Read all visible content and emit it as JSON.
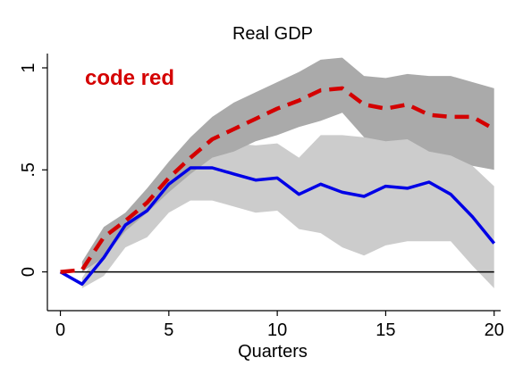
{
  "chart_data": {
    "type": "line",
    "title": "Real GDP",
    "xlabel": "Quarters",
    "ylabel": "",
    "xlim": [
      -0.6,
      20.3
    ],
    "ylim": [
      -0.19,
      1.07
    ],
    "x_ticks": [
      {
        "value": 0,
        "label": "0"
      },
      {
        "value": 5,
        "label": "5"
      },
      {
        "value": 10,
        "label": "10"
      },
      {
        "value": 15,
        "label": "15"
      },
      {
        "value": 20,
        "label": "20"
      }
    ],
    "y_ticks": [
      {
        "value": 0,
        "label": "0"
      },
      {
        "value": 0.5,
        "label": ".5"
      },
      {
        "value": 1,
        "label": "1"
      }
    ],
    "x": [
      0,
      1,
      2,
      3,
      4,
      5,
      6,
      7,
      8,
      9,
      10,
      11,
      12,
      13,
      14,
      15,
      16,
      17,
      18,
      19,
      20
    ],
    "series": [
      {
        "name": "code red",
        "color": "#d40000",
        "style": "dashed",
        "values": [
          0,
          0.01,
          0.17,
          0.25,
          0.34,
          0.46,
          0.56,
          0.65,
          0.7,
          0.75,
          0.8,
          0.84,
          0.89,
          0.9,
          0.82,
          0.8,
          0.82,
          0.77,
          0.76,
          0.76,
          0.7
        ],
        "band_lower": [
          null,
          0,
          0.07,
          0.2,
          0.29,
          0.39,
          0.48,
          0.56,
          0.59,
          0.64,
          0.67,
          0.71,
          0.74,
          0.78,
          0.66,
          0.64,
          0.65,
          0.59,
          0.57,
          0.52,
          0.5
        ],
        "band_upper": [
          null,
          0.05,
          0.22,
          0.29,
          0.41,
          0.54,
          0.66,
          0.76,
          0.83,
          0.88,
          0.93,
          0.98,
          1.04,
          1.05,
          0.96,
          0.95,
          0.97,
          0.96,
          0.96,
          0.93,
          0.9
        ]
      },
      {
        "name": "",
        "color": "#0000e6",
        "style": "solid",
        "values": [
          0,
          -0.06,
          0.07,
          0.23,
          0.3,
          0.43,
          0.51,
          0.51,
          0.48,
          0.45,
          0.46,
          0.38,
          0.43,
          0.39,
          0.37,
          0.42,
          0.41,
          0.44,
          0.38,
          0.27,
          0.14
        ],
        "band_lower": [
          null,
          -0.08,
          -0.02,
          0.12,
          0.17,
          0.29,
          0.35,
          0.35,
          0.32,
          0.29,
          0.3,
          0.21,
          0.19,
          0.12,
          0.08,
          0.13,
          0.15,
          0.15,
          0.15,
          0.03,
          -0.08
        ],
        "band_upper": [
          null,
          -0.03,
          0.13,
          0.28,
          0.4,
          0.52,
          0.62,
          0.63,
          0.63,
          0.62,
          0.63,
          0.56,
          0.67,
          0.67,
          0.66,
          0.66,
          0.67,
          0.63,
          0.58,
          0.52,
          0.42
        ]
      }
    ],
    "reference_line": {
      "y": 0,
      "color": "#000000"
    },
    "legend": {
      "text": "code red",
      "placement": "top-left",
      "color": "#d40000"
    },
    "grid": false
  }
}
